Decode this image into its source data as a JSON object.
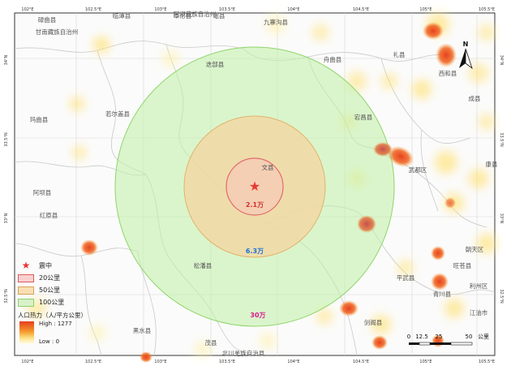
{
  "top_ticks": [
    "102°E",
    "102.5°E",
    "103°E",
    "103.5°E",
    "104°E",
    "104.5°E",
    "105°E",
    "105.5°E"
  ],
  "bottom_ticks": [
    "102°E",
    "102.5°E",
    "103°E",
    "103.5°E",
    "104°E",
    "104.5°E",
    "105°E",
    "105.5°E"
  ],
  "left_ticks": [
    "34°N",
    "33.5°N",
    "33°N",
    "32.5°N"
  ],
  "right_ticks": [
    "34°N",
    "33.5°N",
    "33°N",
    "32.5°N"
  ],
  "place_names": [
    "碌曲县",
    "临潭县",
    "卓尼县",
    "迭部县",
    "若尔盖县",
    "玛曲县",
    "舟曲县",
    "宕昌县",
    "岷县",
    "礼县",
    "西和县",
    "成县",
    "康县",
    "武都区",
    "文县",
    "九寨沟县",
    "红原县",
    "阿坝县",
    "松潘县",
    "平武县",
    "青川县",
    "黑水县",
    "茂县",
    "北川羌族自治县",
    "江油市",
    "剑阁县",
    "利州区",
    "旺苍县",
    "朝天区",
    "阿坝藏族自治州",
    "甘南藏族自治州"
  ],
  "epicenter": {
    "symbol": "★",
    "color": "#e53935"
  },
  "rings": [
    {
      "radius_km": 20,
      "label": "2.1万",
      "color": "#d32f2f"
    },
    {
      "radius_km": 50,
      "label": "6.3万",
      "color": "#1e6fd9"
    },
    {
      "radius_km": 100,
      "label": "30万",
      "color": "#d81b8c"
    }
  ],
  "north_arrow": {
    "label": "N"
  },
  "legend": {
    "epicenter": "震中",
    "ring20": "20公里",
    "ring50": "50公里",
    "ring100": "100公里",
    "heat_title": "人口热力（人/平方公里）",
    "high": "High : 1277",
    "low": "Low : 0"
  },
  "scale_bar": {
    "ticks": [
      "0",
      "12.5",
      "25",
      "50"
    ],
    "unit": "公里"
  }
}
